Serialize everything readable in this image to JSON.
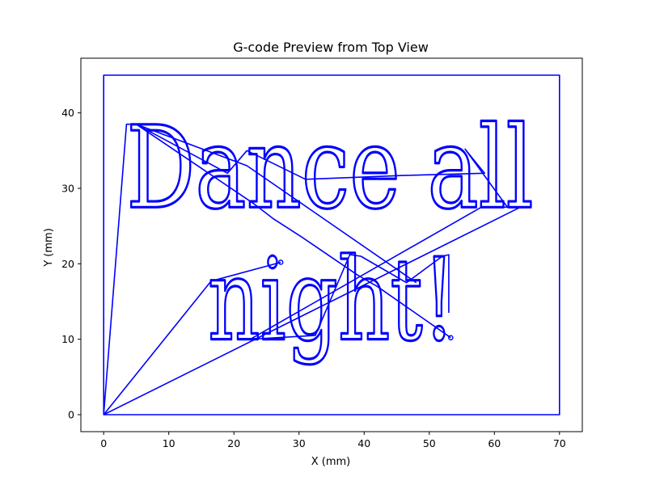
{
  "chart_data": {
    "type": "line",
    "title": "G-code Preview from Top View",
    "xlabel": "X (mm)",
    "ylabel": "Y (mm)",
    "xlim": [
      -3.5,
      73.5
    ],
    "ylim": [
      -2.25,
      47.25
    ],
    "xticks": [
      0,
      10,
      20,
      30,
      40,
      50,
      60,
      70
    ],
    "yticks": [
      0,
      10,
      20,
      30,
      40
    ],
    "grid": false,
    "legend": "none",
    "line_color": "#0000ff",
    "text_lines": [
      {
        "text": "Dance all",
        "x_start": 3.5,
        "x_end": 66,
        "baseline_y": 27.5,
        "cap_height": 11
      },
      {
        "text": "night!",
        "x_start": 16,
        "x_end": 54,
        "baseline_y": 10,
        "cap_height": 11
      }
    ],
    "series": [
      {
        "values": [
          [
            0,
            0
          ],
          [
            0,
            45
          ],
          [
            70,
            45
          ],
          [
            70,
            0
          ],
          [
            0,
            0
          ],
          [
            3.5,
            38.5
          ],
          [
            5,
            38.5
          ],
          [
            23,
            28
          ],
          [
            26,
            26
          ],
          [
            30.5,
            23.5
          ],
          [
            39,
            18.5
          ],
          [
            42,
            17
          ],
          [
            53.3,
            10.2
          ]
        ]
      },
      {
        "values": [
          [
            5,
            38.5
          ],
          [
            19,
            32
          ],
          [
            22,
            35
          ],
          [
            31,
            31.2
          ],
          [
            46,
            31.7
          ],
          [
            58.5,
            32
          ],
          [
            55.5,
            35.2
          ],
          [
            62,
            27.5
          ],
          [
            58,
            27.5
          ],
          [
            22.5,
            10
          ],
          [
            32.5,
            10.5
          ],
          [
            37.8,
            21.2
          ],
          [
            39.5,
            21
          ],
          [
            46.5,
            17.5
          ],
          [
            52,
            21
          ],
          [
            53,
            21.2
          ],
          [
            53,
            13.5
          ]
        ]
      },
      {
        "values": [
          [
            0,
            0
          ],
          [
            16.5,
            17.7
          ],
          [
            27.2,
            20.2
          ]
        ]
      },
      {
        "values": [
          [
            0,
            0
          ],
          [
            64,
            27.5
          ]
        ]
      },
      {
        "values": [
          [
            5,
            38.5
          ],
          [
            22,
            33
          ],
          [
            48,
            17.5
          ]
        ]
      }
    ],
    "markers": [
      [
        27.2,
        20.2
      ],
      [
        53.3,
        10.2
      ]
    ]
  }
}
